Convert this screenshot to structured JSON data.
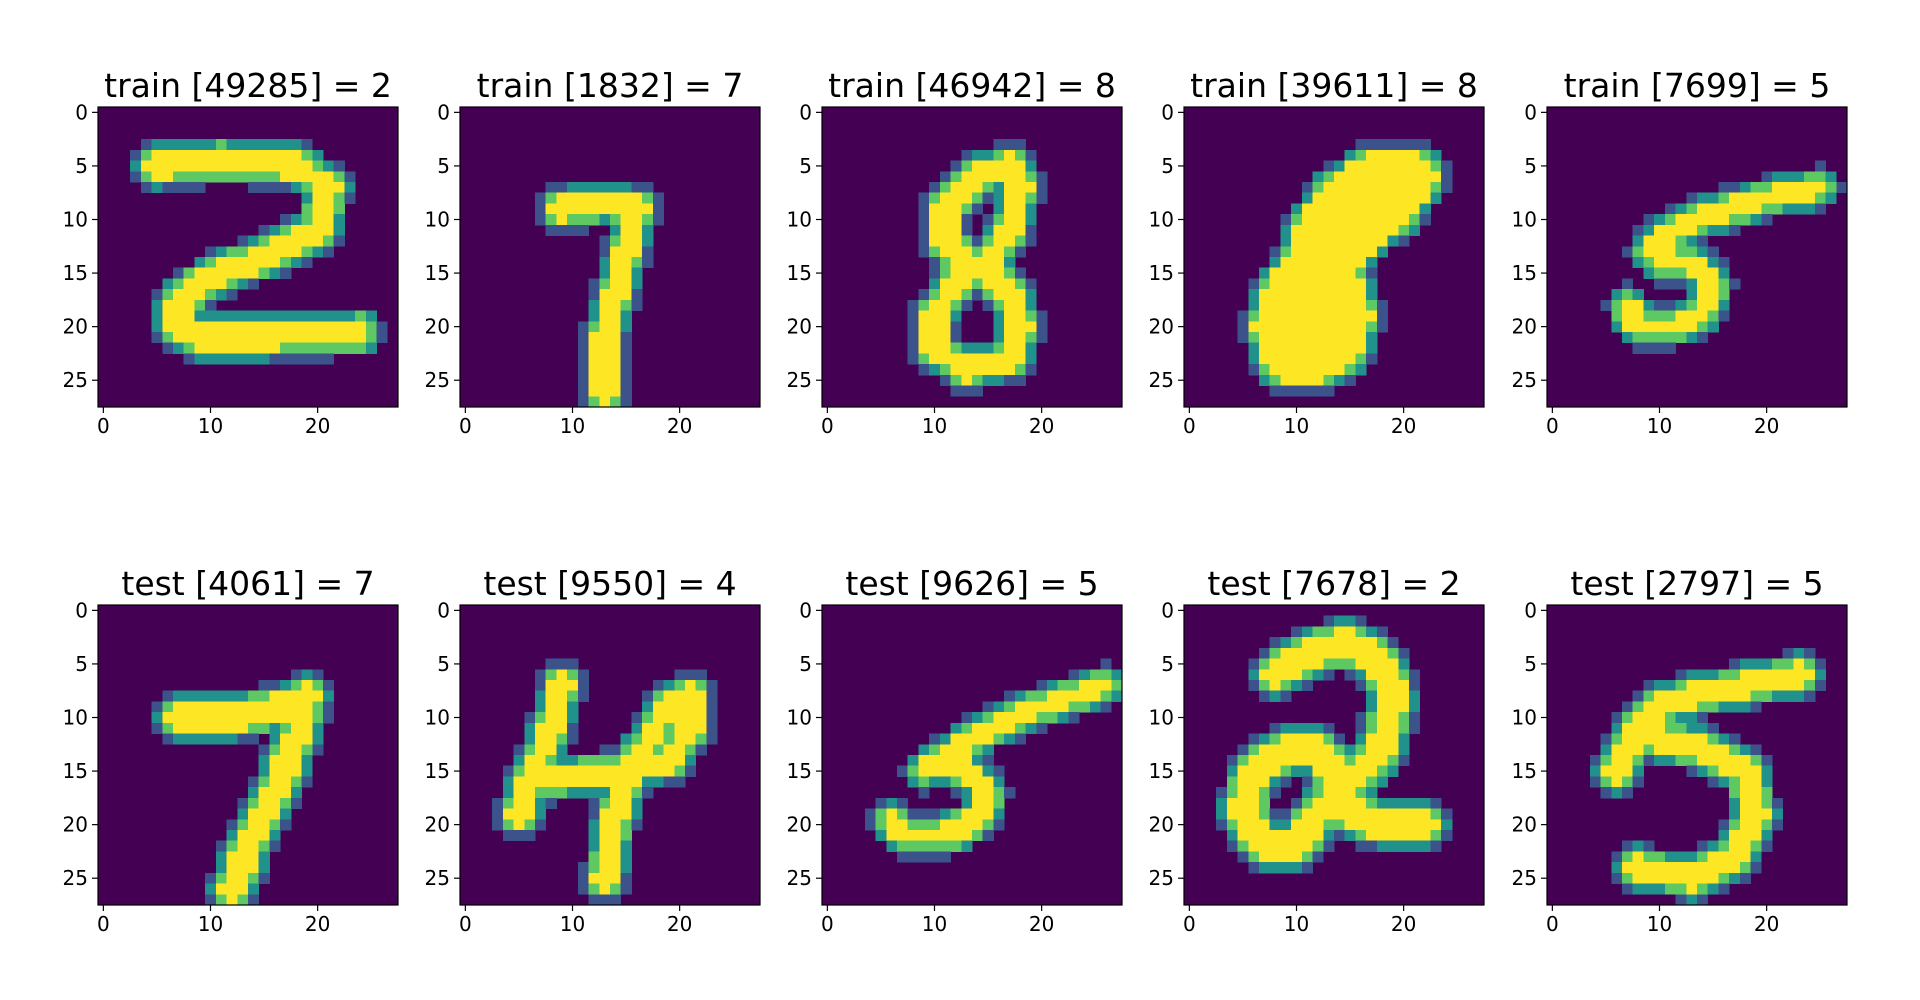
{
  "figure": {
    "background": "#ffffff",
    "rows": 2,
    "cols": 5
  },
  "colormap": [
    "#440154",
    "#3b528b",
    "#21918c",
    "#5ec962",
    "#fde725"
  ],
  "chart_data": [
    {
      "type": "heatmap",
      "title": "train [49285] = 2",
      "xticks": [
        "0",
        "10",
        "20"
      ],
      "yticks": [
        "0",
        "5",
        "10",
        "15",
        "20",
        "25"
      ],
      "xlim": [
        -0.5,
        27.5
      ],
      "ylim": [
        27.5,
        -0.5
      ],
      "grid": false,
      "strokes": [
        [
          [
            5,
            5
          ],
          [
            11,
            4.5
          ],
          [
            18,
            5
          ],
          [
            21,
            7
          ],
          [
            20,
            11
          ],
          [
            16,
            13
          ],
          [
            10,
            15.5
          ],
          [
            7,
            17.5
          ],
          [
            7,
            20
          ],
          [
            9,
            21
          ],
          [
            15,
            21
          ],
          [
            24,
            20.5
          ]
        ]
      ],
      "width": 1.1
    },
    {
      "type": "heatmap",
      "title": "train [1832] = 7",
      "xticks": [
        "0",
        "10",
        "20"
      ],
      "yticks": [
        "0",
        "5",
        "10",
        "15",
        "20",
        "25"
      ],
      "xlim": [
        -0.5,
        27.5
      ],
      "ylim": [
        27.5,
        -0.5
      ],
      "grid": false,
      "strokes": [
        [
          [
            9,
            9
          ],
          [
            13,
            8.5
          ],
          [
            16,
            9
          ],
          [
            15,
            13
          ],
          [
            14,
            17
          ],
          [
            13,
            21
          ],
          [
            13,
            26
          ]
        ]
      ],
      "width": 1.0
    },
    {
      "type": "heatmap",
      "title": "train [46942] = 8",
      "xticks": [
        "0",
        "10",
        "20"
      ],
      "yticks": [
        "0",
        "5",
        "10",
        "15",
        "20",
        "25"
      ],
      "xlim": [
        -0.5,
        27.5
      ],
      "ylim": [
        27.5,
        -0.5
      ],
      "grid": false,
      "strokes": [
        [
          [
            17,
            5
          ],
          [
            14,
            6
          ],
          [
            11,
            9
          ],
          [
            11,
            12
          ],
          [
            13,
            14
          ],
          [
            15,
            15
          ],
          [
            17,
            17
          ],
          [
            18,
            20
          ],
          [
            17,
            23
          ],
          [
            13,
            24
          ],
          [
            10,
            22
          ],
          [
            10,
            19
          ],
          [
            12,
            16
          ],
          [
            15,
            14
          ],
          [
            17,
            11
          ],
          [
            18,
            7
          ],
          [
            17,
            5
          ]
        ]
      ],
      "width": 1.0
    },
    {
      "type": "heatmap",
      "title": "train [39611] = 8",
      "xticks": [
        "0",
        "10",
        "20"
      ],
      "yticks": [
        "0",
        "5",
        "10",
        "15",
        "20",
        "25"
      ],
      "xlim": [
        -0.5,
        27.5
      ],
      "ylim": [
        27.5,
        -0.5
      ],
      "grid": false,
      "strokes": [
        [
          [
            21,
            6
          ],
          [
            17,
            6
          ],
          [
            14,
            8
          ],
          [
            12,
            11
          ],
          [
            11,
            14
          ],
          [
            9,
            17
          ],
          [
            8,
            20
          ],
          [
            9,
            23
          ],
          [
            12,
            23
          ],
          [
            14,
            22
          ],
          [
            15,
            19
          ],
          [
            14,
            16
          ],
          [
            12,
            16
          ]
        ],
        [
          [
            21,
            6
          ],
          [
            19,
            9
          ],
          [
            16,
            11
          ],
          [
            14,
            14
          ],
          [
            12,
            18
          ],
          [
            11,
            21
          ]
        ]
      ],
      "width": 2.0
    },
    {
      "type": "heatmap",
      "title": "train [7699] = 5",
      "xticks": [
        "0",
        "10",
        "20"
      ],
      "yticks": [
        "0",
        "5",
        "10",
        "15",
        "20",
        "25"
      ],
      "xlim": [
        -0.5,
        27.5
      ],
      "ylim": [
        27.5,
        -0.5
      ],
      "grid": false,
      "strokes": [
        [
          [
            25,
            7
          ],
          [
            20,
            8
          ],
          [
            15,
            9.5
          ],
          [
            11,
            11
          ],
          [
            9,
            13
          ]
        ],
        [
          [
            11,
            11.5
          ],
          [
            10,
            14
          ],
          [
            13,
            14
          ],
          [
            15,
            16
          ],
          [
            14,
            19
          ],
          [
            11,
            20
          ],
          [
            8,
            20
          ],
          [
            7,
            18
          ]
        ]
      ],
      "width": 0.9
    },
    {
      "type": "heatmap",
      "title": "test [4061] = 7",
      "xticks": [
        "0",
        "10",
        "20"
      ],
      "yticks": [
        "0",
        "5",
        "10",
        "15",
        "20",
        "25"
      ],
      "xlim": [
        -0.5,
        27.5
      ],
      "ylim": [
        27.5,
        -0.5
      ],
      "grid": false,
      "strokes": [
        [
          [
            7,
            10
          ],
          [
            12,
            10
          ],
          [
            17,
            9
          ],
          [
            19,
            8
          ],
          [
            18,
            12
          ],
          [
            16,
            17
          ],
          [
            14,
            21
          ],
          [
            12,
            26
          ]
        ]
      ],
      "width": 1.2
    },
    {
      "type": "heatmap",
      "title": "test [9550] = 4",
      "xticks": [
        "0",
        "10",
        "20"
      ],
      "yticks": [
        "0",
        "5",
        "10",
        "15",
        "20",
        "25"
      ],
      "xlim": [
        -0.5,
        27.5
      ],
      "ylim": [
        27.5,
        -0.5
      ],
      "grid": false,
      "strokes": [
        [
          [
            9,
            7
          ],
          [
            8,
            11
          ],
          [
            6,
            16
          ],
          [
            5,
            19
          ]
        ],
        [
          [
            6,
            16
          ],
          [
            10,
            15.5
          ],
          [
            15,
            15
          ],
          [
            19,
            14
          ],
          [
            21,
            11
          ],
          [
            21,
            8
          ],
          [
            19,
            9
          ],
          [
            16,
            14
          ],
          [
            14,
            19
          ],
          [
            13,
            25
          ]
        ]
      ],
      "width": 1.0
    },
    {
      "type": "heatmap",
      "title": "test [9626] = 5",
      "xticks": [
        "0",
        "10",
        "20"
      ],
      "yticks": [
        "0",
        "5",
        "10",
        "15",
        "20",
        "25"
      ],
      "xlim": [
        -0.5,
        27.5
      ],
      "ylim": [
        27.5,
        -0.5
      ],
      "grid": false,
      "strokes": [
        [
          [
            26,
            7
          ],
          [
            20,
            9
          ],
          [
            15,
            11
          ],
          [
            12,
            13
          ],
          [
            9,
            15
          ]
        ],
        [
          [
            11,
            14
          ],
          [
            13,
            15
          ],
          [
            15,
            17
          ],
          [
            14,
            19.5
          ],
          [
            11,
            21
          ],
          [
            7,
            21
          ],
          [
            6,
            19.5
          ]
        ]
      ],
      "width": 0.9
    },
    {
      "type": "heatmap",
      "title": "test [7678] = 2",
      "xticks": [
        "0",
        "10",
        "20"
      ],
      "yticks": [
        "0",
        "5",
        "10",
        "15",
        "20",
        "25"
      ],
      "xlim": [
        -0.5,
        27.5
      ],
      "ylim": [
        27.5,
        -0.5
      ],
      "grid": false,
      "strokes": [
        [
          [
            8,
            6
          ],
          [
            11,
            4
          ],
          [
            15,
            3
          ],
          [
            18,
            5
          ],
          [
            19,
            8
          ],
          [
            18,
            13
          ],
          [
            15,
            16
          ],
          [
            12,
            19
          ],
          [
            10,
            22
          ],
          [
            7,
            22
          ],
          [
            5,
            19
          ],
          [
            6,
            15
          ],
          [
            9,
            13
          ],
          [
            12,
            13
          ],
          [
            14,
            16
          ],
          [
            15,
            19
          ],
          [
            18,
            20
          ],
          [
            22,
            20
          ]
        ]
      ],
      "width": 1.3
    },
    {
      "type": "heatmap",
      "title": "test [2797] = 5",
      "xticks": [
        "0",
        "10",
        "20"
      ],
      "yticks": [
        "0",
        "5",
        "10",
        "15",
        "20",
        "25"
      ],
      "xlim": [
        -0.5,
        27.5
      ],
      "ylim": [
        27.5,
        -0.5
      ],
      "grid": false,
      "strokes": [
        [
          [
            23,
            6
          ],
          [
            18,
            7
          ],
          [
            13,
            8
          ],
          [
            10,
            9
          ],
          [
            8,
            11
          ],
          [
            6,
            15
          ]
        ],
        [
          [
            8,
            11
          ],
          [
            10,
            12
          ],
          [
            14,
            13
          ],
          [
            18,
            15
          ],
          [
            19,
            19
          ],
          [
            17,
            23
          ],
          [
            13,
            25
          ],
          [
            8,
            24
          ]
        ]
      ],
      "width": 1.1
    }
  ]
}
